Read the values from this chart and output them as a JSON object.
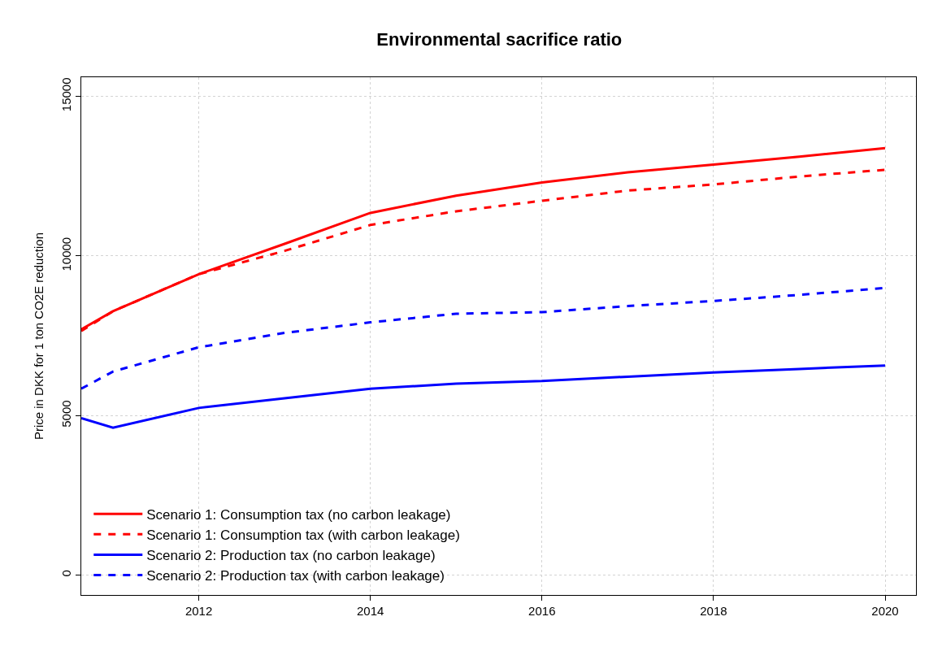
{
  "chart_data": {
    "type": "line",
    "title": "Environmental sacrifice ratio",
    "ylabel": "Price in DKK for 1 ton CO2E reduction",
    "x": [
      2010.63,
      2011,
      2012,
      2013,
      2014,
      2015,
      2016,
      2017,
      2018,
      2019,
      2020
    ],
    "series": [
      {
        "name": "Scenario 1: Consumption tax (no carbon leakage)",
        "color": "#ff0000",
        "line_style": "solid",
        "values": [
          7700,
          8270,
          9430,
          10380,
          11350,
          11890,
          12300,
          12620,
          12860,
          13110,
          13380
        ]
      },
      {
        "name": "Scenario 1: Consumption tax (with carbon leakage)",
        "color": "#ff0000",
        "line_style": "dashed",
        "values": [
          7650,
          8270,
          9430,
          10160,
          10970,
          11400,
          11730,
          12050,
          12240,
          12490,
          12700
        ]
      },
      {
        "name": "Scenario 2: Production tax (no carbon leakage)",
        "color": "#0000ff",
        "line_style": "solid",
        "values": [
          4920,
          4620,
          5240,
          5540,
          5840,
          6000,
          6080,
          6220,
          6350,
          6460,
          6570
        ]
      },
      {
        "name": "Scenario 2: Production tax (with carbon leakage)",
        "color": "#0000ff",
        "line_style": "dashed",
        "values": [
          5840,
          6380,
          7140,
          7590,
          7920,
          8190,
          8240,
          8430,
          8590,
          8780,
          9000
        ]
      }
    ],
    "xlim": [
      2010.63,
      2020.36
    ],
    "xticks": [
      2012,
      2014,
      2016,
      2018,
      2020
    ],
    "ylim": [
      -620,
      15600
    ],
    "yticks": [
      0,
      5000,
      10000,
      15000
    ],
    "grid": true,
    "legend": "bottom left",
    "marker": "none"
  }
}
